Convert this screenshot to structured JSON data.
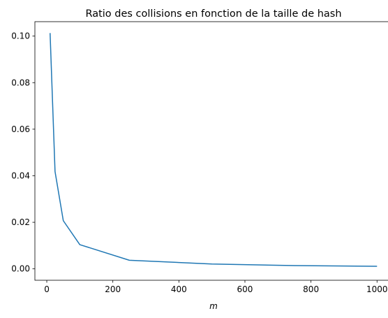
{
  "chart_data": {
    "type": "line",
    "title": "Ratio des collisions en fonction de la taille de hash",
    "xlabel": "m",
    "ylabel": "",
    "xlim": [
      -36,
      1048
    ],
    "ylim": [
      -0.0049,
      0.1062
    ],
    "xticks": [
      0,
      200,
      400,
      600,
      800,
      1000
    ],
    "xtick_labels": [
      "0",
      "200",
      "400",
      "600",
      "800",
      "1000"
    ],
    "yticks": [
      0.0,
      0.02,
      0.04,
      0.06,
      0.08,
      0.1
    ],
    "ytick_labels": [
      "0.00",
      "0.02",
      "0.04",
      "0.06",
      "0.08",
      "0.10"
    ],
    "grid": false,
    "series": [
      {
        "name": "",
        "color": "#1f77b4",
        "x": [
          10,
          25,
          50,
          100,
          250,
          500,
          750,
          1000
        ],
        "y": [
          0.1013,
          0.0418,
          0.0207,
          0.0104,
          0.0037,
          0.0021,
          0.0014,
          0.0011
        ]
      }
    ]
  }
}
